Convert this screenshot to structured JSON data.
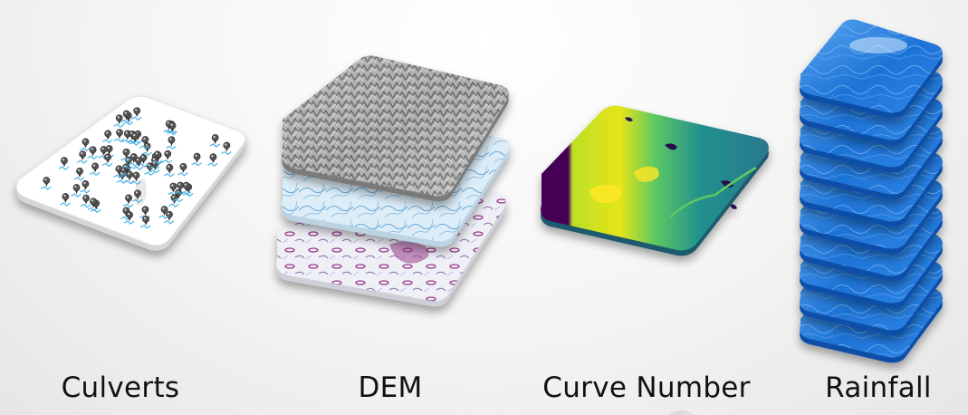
{
  "layers": {
    "culverts": {
      "label": "Culverts",
      "tile_color": "#ffffff",
      "marker_color": "#555555",
      "stream_color": "#4ab3e8",
      "icon": "map-pin-icon"
    },
    "dem": {
      "label": "DEM",
      "stack_count": 3,
      "sheets": [
        "hillshade",
        "stream network",
        "terrain"
      ],
      "colors": {
        "hillshade": "#8a8a8a",
        "streams": "#cfe6f5",
        "terrain": "#9b3d8c"
      }
    },
    "curve_number": {
      "label": "Curve Number",
      "colors": {
        "low": "#440154",
        "mid": "#21918c",
        "high": "#fde725",
        "water": "#2a1050"
      }
    },
    "rainfall": {
      "label": "Rainfall",
      "stack_count": 10,
      "colors": {
        "base": "#1e73d6",
        "light": "#5aa8f2",
        "edge": "#0f4fa8"
      }
    }
  }
}
